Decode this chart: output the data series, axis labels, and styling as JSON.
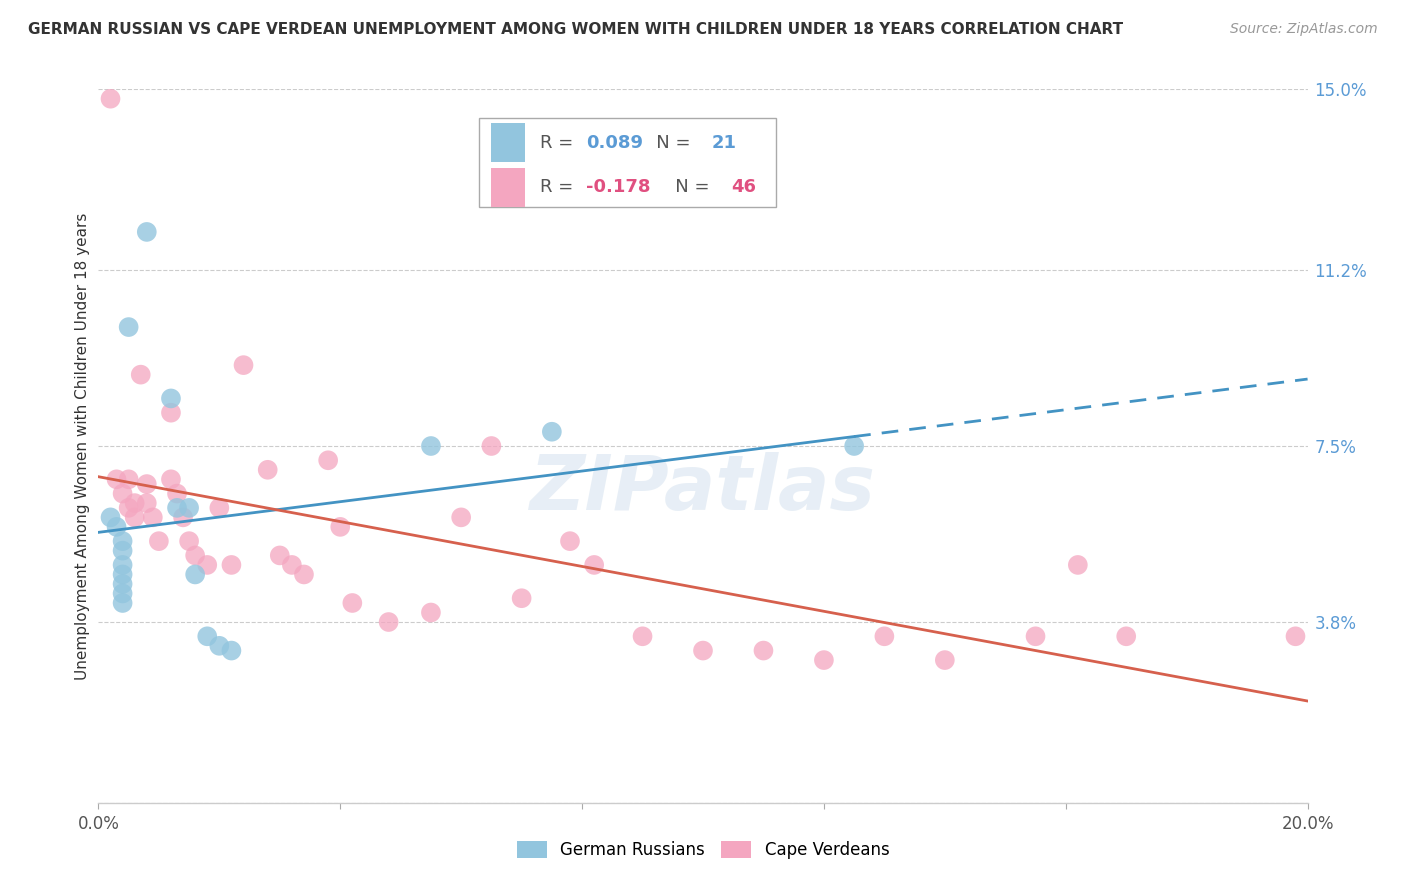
{
  "title": "GERMAN RUSSIAN VS CAPE VERDEAN UNEMPLOYMENT AMONG WOMEN WITH CHILDREN UNDER 18 YEARS CORRELATION CHART",
  "source": "Source: ZipAtlas.com",
  "ylabel": "Unemployment Among Women with Children Under 18 years",
  "xlim": [
    0.0,
    0.2
  ],
  "ylim": [
    0.0,
    0.15
  ],
  "xticks": [
    0.0,
    0.04,
    0.08,
    0.12,
    0.16,
    0.2
  ],
  "xticklabels": [
    "0.0%",
    "",
    "",
    "",
    "",
    "20.0%"
  ],
  "yticks_right": [
    0.0,
    0.038,
    0.075,
    0.112,
    0.15
  ],
  "yticklabels_right": [
    "",
    "3.8%",
    "7.5%",
    "11.2%",
    "15.0%"
  ],
  "german_russian_R": 0.089,
  "german_russian_N": 21,
  "cape_verdean_R": -0.178,
  "cape_verdean_N": 46,
  "blue_color": "#92c5de",
  "pink_color": "#f4a6c0",
  "blue_line_color": "#4393c3",
  "pink_line_color": "#d6604d",
  "watermark": "ZIPatlas",
  "legend_label_blue": "German Russians",
  "legend_label_pink": "Cape Verdeans",
  "german_russian_points": [
    [
      0.002,
      0.06
    ],
    [
      0.003,
      0.058
    ],
    [
      0.004,
      0.055
    ],
    [
      0.004,
      0.053
    ],
    [
      0.004,
      0.05
    ],
    [
      0.004,
      0.048
    ],
    [
      0.004,
      0.046
    ],
    [
      0.004,
      0.044
    ],
    [
      0.004,
      0.042
    ],
    [
      0.005,
      0.1
    ],
    [
      0.008,
      0.12
    ],
    [
      0.012,
      0.085
    ],
    [
      0.013,
      0.062
    ],
    [
      0.015,
      0.062
    ],
    [
      0.016,
      0.048
    ],
    [
      0.018,
      0.035
    ],
    [
      0.02,
      0.033
    ],
    [
      0.022,
      0.032
    ],
    [
      0.055,
      0.075
    ],
    [
      0.075,
      0.078
    ],
    [
      0.125,
      0.075
    ]
  ],
  "cape_verdean_points": [
    [
      0.002,
      0.148
    ],
    [
      0.003,
      0.068
    ],
    [
      0.004,
      0.065
    ],
    [
      0.005,
      0.068
    ],
    [
      0.005,
      0.062
    ],
    [
      0.006,
      0.063
    ],
    [
      0.006,
      0.06
    ],
    [
      0.007,
      0.09
    ],
    [
      0.008,
      0.067
    ],
    [
      0.008,
      0.063
    ],
    [
      0.009,
      0.06
    ],
    [
      0.01,
      0.055
    ],
    [
      0.012,
      0.082
    ],
    [
      0.012,
      0.068
    ],
    [
      0.013,
      0.065
    ],
    [
      0.014,
      0.06
    ],
    [
      0.015,
      0.055
    ],
    [
      0.016,
      0.052
    ],
    [
      0.018,
      0.05
    ],
    [
      0.02,
      0.062
    ],
    [
      0.022,
      0.05
    ],
    [
      0.024,
      0.092
    ],
    [
      0.028,
      0.07
    ],
    [
      0.03,
      0.052
    ],
    [
      0.032,
      0.05
    ],
    [
      0.034,
      0.048
    ],
    [
      0.038,
      0.072
    ],
    [
      0.04,
      0.058
    ],
    [
      0.042,
      0.042
    ],
    [
      0.048,
      0.038
    ],
    [
      0.055,
      0.04
    ],
    [
      0.06,
      0.06
    ],
    [
      0.065,
      0.075
    ],
    [
      0.07,
      0.043
    ],
    [
      0.078,
      0.055
    ],
    [
      0.082,
      0.05
    ],
    [
      0.09,
      0.035
    ],
    [
      0.1,
      0.032
    ],
    [
      0.11,
      0.032
    ],
    [
      0.12,
      0.03
    ],
    [
      0.13,
      0.035
    ],
    [
      0.14,
      0.03
    ],
    [
      0.155,
      0.035
    ],
    [
      0.162,
      0.05
    ],
    [
      0.17,
      0.035
    ],
    [
      0.198,
      0.035
    ]
  ]
}
